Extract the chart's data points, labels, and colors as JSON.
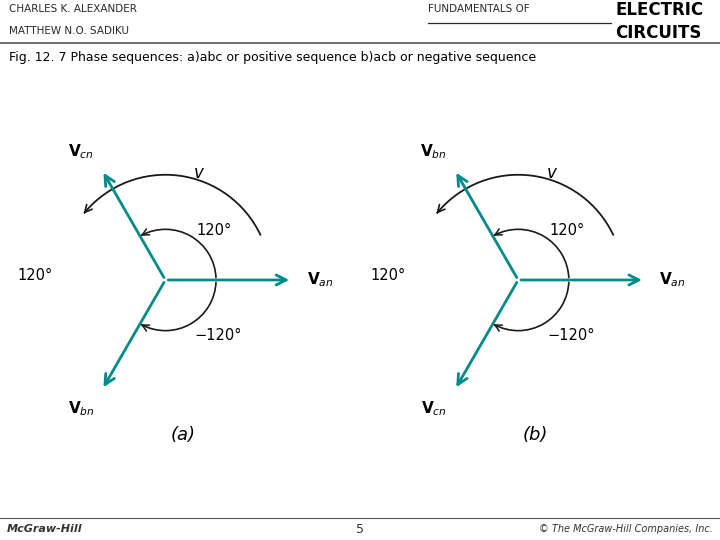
{
  "bg_color": "#ffffff",
  "arrow_color": "#008B8B",
  "arc_color": "#1a1a1a",
  "text_color": "#000000",
  "title_text": "Fig. 12. 7 Phase sequences: a)abc or positive sequence b)acb or negative sequence",
  "header_left1": "CHARLES K. ALEXANDER",
  "header_left2": "MATTHEW N.O. SADIKU",
  "header_right_small": "FUNDAMENTALS OF",
  "header_right_big1": "ELECTRIC",
  "header_right_big2": "CIRCUITS",
  "footer_left": "McGraw-Hill",
  "footer_center": "5",
  "footer_right": "© The McGraw-Hill Companies, Inc.",
  "diagram_a_label": "(a)",
  "diagram_b_label": "(b)",
  "phasor_L": 1.3,
  "small_arc_r": 0.52,
  "large_arc_r": 1.08
}
